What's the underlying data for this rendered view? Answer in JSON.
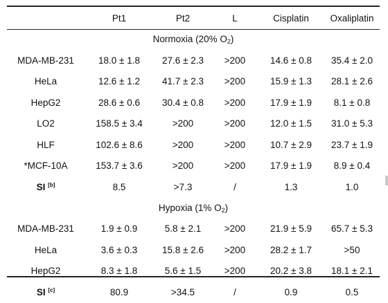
{
  "header": {
    "blank": "",
    "col1": "Pt1",
    "col2": "Pt2",
    "col3": "L",
    "col4": "Cisplatin",
    "col5": "Oxaliplatin"
  },
  "normoxia": {
    "title_prefix": "Normoxia (20% O",
    "title_sub": "2",
    "title_suffix": ")",
    "rows": [
      {
        "label": "MDA-MB-231",
        "c1": "18.0 ± 1.8",
        "c2": "27.6 ± 2.3",
        "c3": ">200",
        "c4": "14.6 ± 0.8",
        "c5": "35.4 ± 2.0"
      },
      {
        "label": "HeLa",
        "c1": "12.6 ± 1.2",
        "c2": "41.7 ± 2.3",
        "c3": ">200",
        "c4": "15.9 ± 1.3",
        "c5": "28.1 ± 2.6"
      },
      {
        "label": "HepG2",
        "c1": "28.6 ± 0.6",
        "c2": "30.4 ± 0.8",
        "c3": ">200",
        "c4": "17.9 ± 1.9",
        "c5": "8.1 ± 0.8"
      },
      {
        "label": "LO2",
        "c1": "158.5 ± 3.4",
        "c2": ">200",
        "c3": ">200",
        "c4": "12.0 ± 1.5",
        "c5": "31.0 ± 5.3"
      },
      {
        "label": "HLF",
        "c1": "102.6 ± 8.6",
        "c2": ">200",
        "c3": ">200",
        "c4": "10.7 ± 2.9",
        "c5": "23.7 ± 1.9"
      },
      {
        "label": "*MCF-10A",
        "c1": "153.7 ± 3.6",
        "c2": ">200",
        "c3": ">200",
        "c4": "17.9 ± 1.9",
        "c5": "8.9 ± 0.4"
      }
    ],
    "si": {
      "label": "SI",
      "note": "[b]",
      "c1": "8.5",
      "c2": ">7.3",
      "c3": "/",
      "c4": "1.3",
      "c5": "1.0"
    }
  },
  "hypoxia": {
    "title_prefix": "Hypoxia (1% O",
    "title_sub": "2",
    "title_suffix": ")",
    "rows": [
      {
        "label": "MDA-MB-231",
        "c1": "1.9 ± 0.9",
        "c2": "5.8 ± 2.1",
        "c3": ">200",
        "c4": "21.9 ± 5.9",
        "c5": "65.7 ± 5.3"
      },
      {
        "label": "HeLa",
        "c1": "3.6 ± 0.3",
        "c2": "15.8 ± 2.6",
        "c3": ">200",
        "c4": "28.2 ± 1.7",
        "c5": ">50"
      },
      {
        "label": "HepG2",
        "c1": "8.3 ± 1.8",
        "c2": "5.6 ± 1.5",
        "c3": ">200",
        "c4": "20.2 ± 3.8",
        "c5": "18.1 ± 2.1"
      }
    ],
    "si": {
      "label": "SI",
      "note": "[c]",
      "c1": "80.9",
      "c2": ">34.5",
      "c3": "/",
      "c4": "0.9",
      "c5": "0.5"
    }
  }
}
